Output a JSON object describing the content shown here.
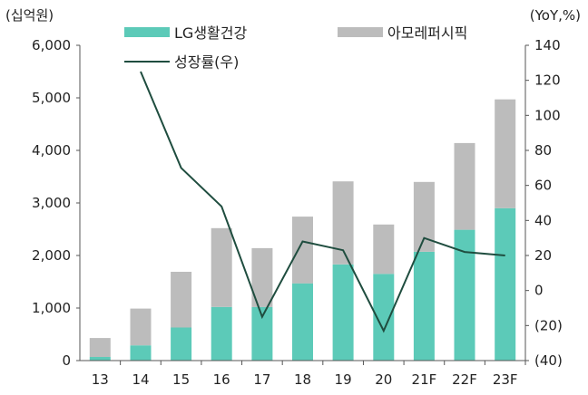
{
  "chart_data": {
    "type": "bar",
    "categories": [
      "13",
      "14",
      "15",
      "16",
      "17",
      "18",
      "19",
      "20",
      "21F",
      "22F",
      "23F"
    ],
    "left_axis_unit": "(십억원)",
    "right_axis_unit": "(YoY,%)",
    "left_ticks": [
      "0",
      "1,000",
      "2,000",
      "3,000",
      "4,000",
      "5,000",
      "6,000"
    ],
    "right_ticks": [
      "(40)",
      "(20)",
      "0",
      "20",
      "40",
      "60",
      "80",
      "100",
      "120",
      "140"
    ],
    "ylim_left": [
      0,
      6000
    ],
    "ylim_right": [
      -40,
      140
    ],
    "stacked": true,
    "grid": false,
    "legend_position": "top",
    "series": [
      {
        "name": "LG생활건강",
        "kind": "bar",
        "axis": "left",
        "color": "#5ccab8",
        "values": [
          70,
          290,
          630,
          1020,
          1020,
          1470,
          1830,
          1650,
          2070,
          2490,
          2900
        ]
      },
      {
        "name": "아모레퍼시픽",
        "kind": "bar",
        "axis": "left",
        "color": "#bcbcbc",
        "values": [
          360,
          700,
          1060,
          1500,
          1120,
          1270,
          1580,
          940,
          1330,
          1650,
          2070
        ]
      },
      {
        "name": "성장률(우)",
        "kind": "line",
        "axis": "right",
        "color": "#1f4d3f",
        "values": [
          null,
          125,
          70,
          48,
          -15,
          28,
          23,
          -23,
          30,
          22,
          20
        ]
      }
    ]
  }
}
